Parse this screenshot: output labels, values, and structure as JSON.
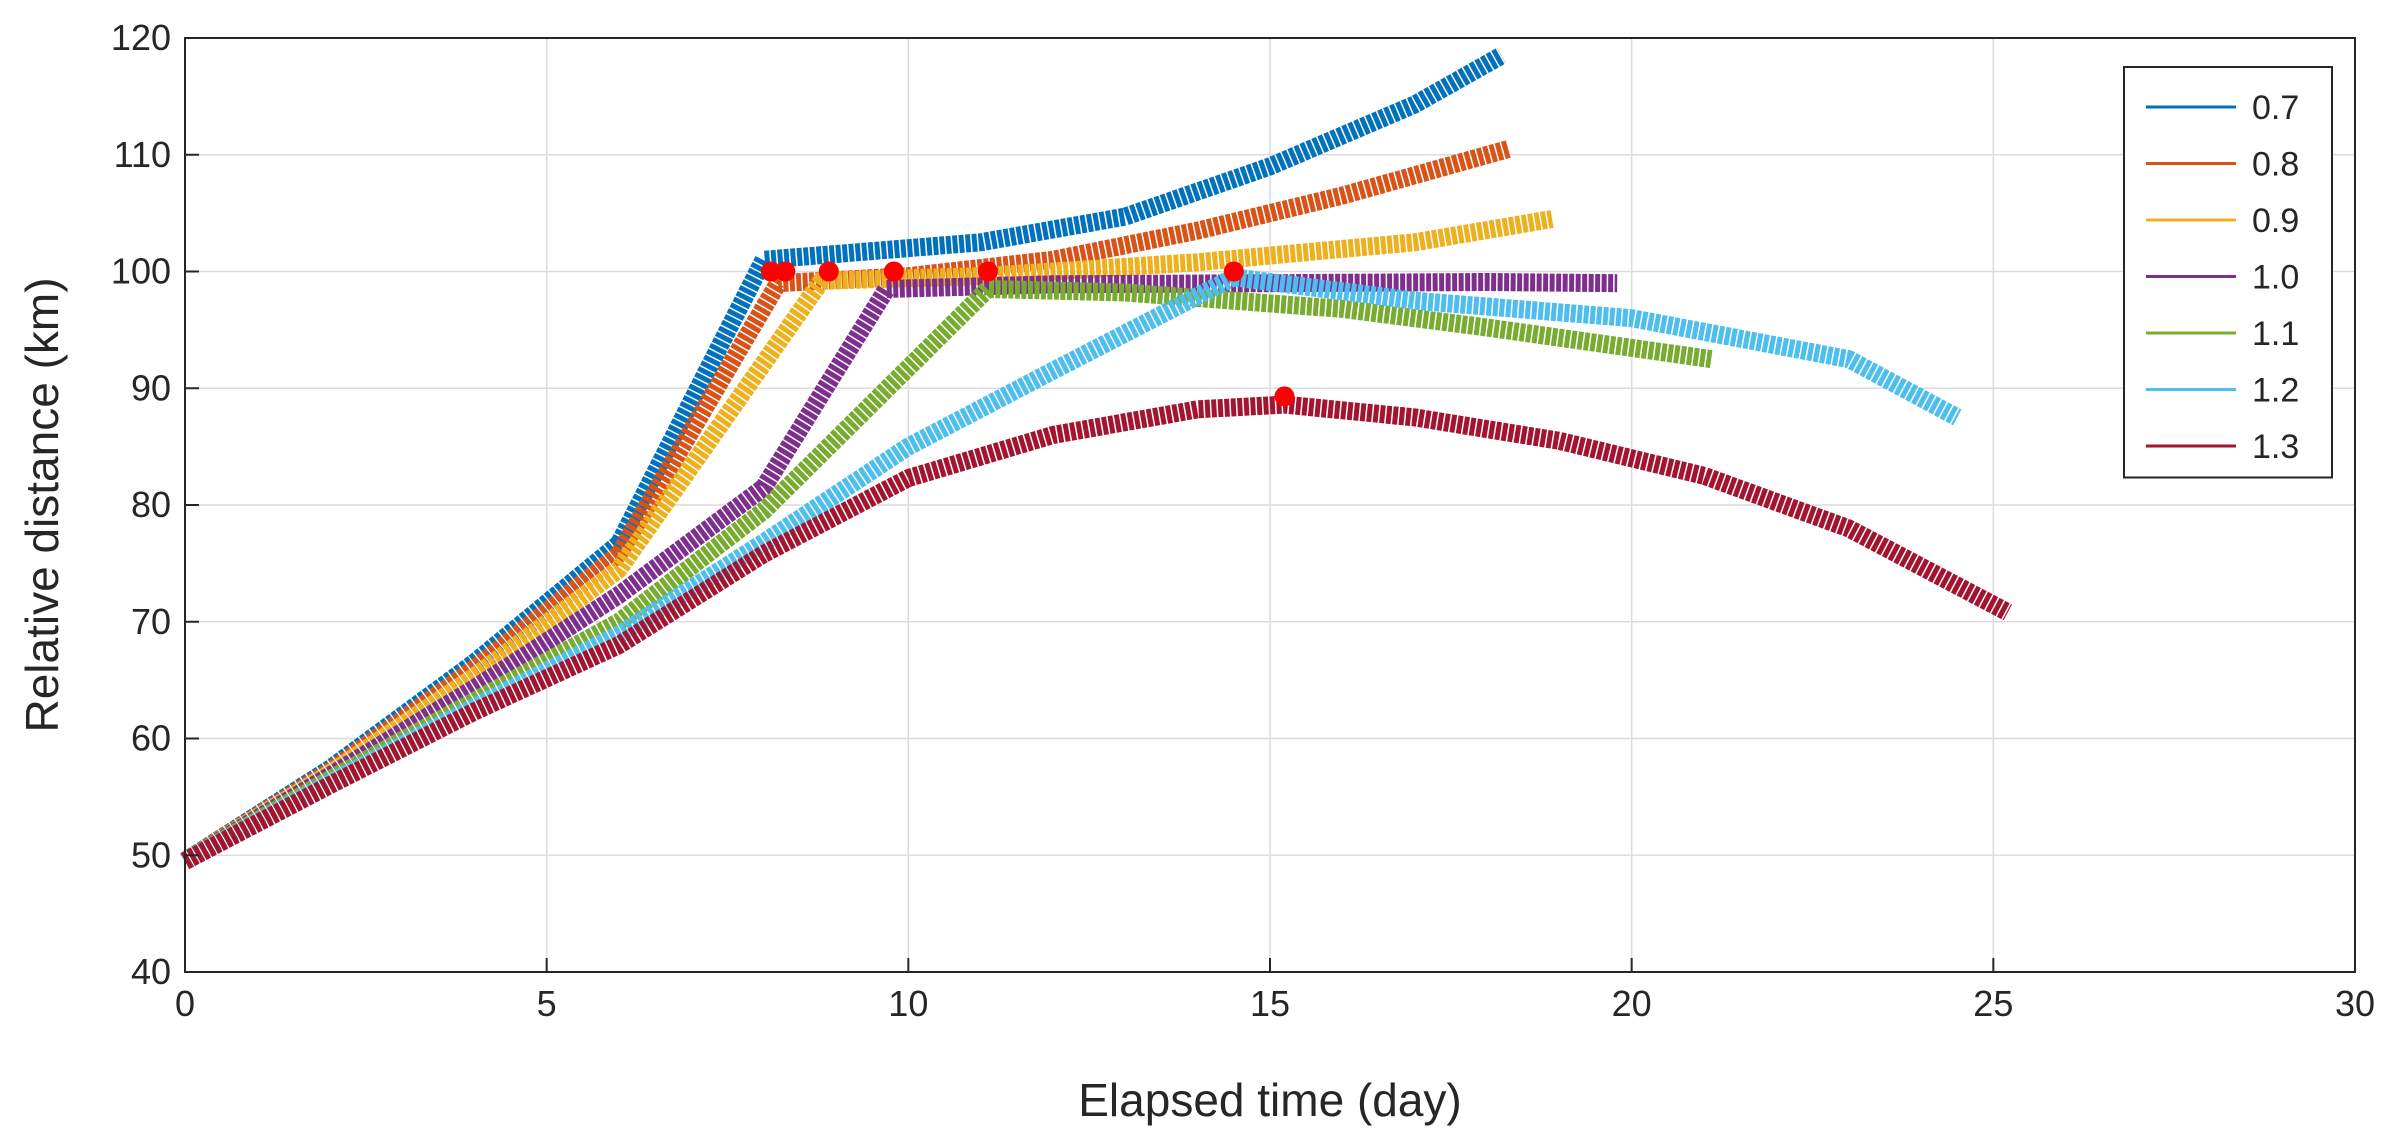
{
  "chart_data": {
    "type": "line",
    "title": "",
    "xlabel": "Elapsed time (day)",
    "ylabel": "Relative distance (km)",
    "xlim": [
      0,
      30
    ],
    "ylim": [
      40,
      120
    ],
    "xticks": [
      0,
      5,
      10,
      15,
      20,
      25,
      30
    ],
    "yticks": [
      40,
      50,
      60,
      70,
      80,
      90,
      100,
      110,
      120
    ],
    "xtick_labels": [
      "0",
      "5",
      "10",
      "15",
      "20",
      "25",
      "30"
    ],
    "ytick_labels": [
      "40",
      "50",
      "60",
      "70",
      "80",
      "90",
      "100",
      "110",
      "120"
    ],
    "grid": true,
    "legend_position": "top-right",
    "series": [
      {
        "name": "0.7",
        "color": "#0072BD",
        "points": [
          [
            0,
            49.5
          ],
          [
            2,
            57.4
          ],
          [
            4,
            66.5
          ],
          [
            6,
            76.7
          ],
          [
            8,
            101.0
          ],
          [
            9,
            101.5
          ],
          [
            11,
            102.5
          ],
          [
            13,
            104.7
          ],
          [
            15,
            109.0
          ],
          [
            17,
            114.3
          ],
          [
            18.2,
            118.5
          ]
        ],
        "marker": [
          8.1,
          100
        ]
      },
      {
        "name": "0.8",
        "color": "#D95319",
        "points": [
          [
            0,
            49.5
          ],
          [
            2,
            57.2
          ],
          [
            4,
            66.0
          ],
          [
            6,
            75.8
          ],
          [
            8.2,
            99.0
          ],
          [
            10,
            99.6
          ],
          [
            12,
            101.0
          ],
          [
            14,
            103.5
          ],
          [
            16,
            106.5
          ],
          [
            18.3,
            110.5
          ]
        ],
        "marker": [
          8.3,
          100
        ]
      },
      {
        "name": "0.9",
        "color": "#EDB120",
        "points": [
          [
            0,
            49.5
          ],
          [
            2,
            57.0
          ],
          [
            4,
            65.3
          ],
          [
            6,
            74.5
          ],
          [
            8.8,
            99.2
          ],
          [
            11,
            99.6
          ],
          [
            14,
            100.8
          ],
          [
            17,
            102.5
          ],
          [
            18.9,
            104.5
          ]
        ],
        "marker": [
          8.9,
          100
        ]
      },
      {
        "name": "1.0",
        "color": "#7E2F8E",
        "points": [
          [
            0,
            49.5
          ],
          [
            2,
            56.8
          ],
          [
            4,
            64.3
          ],
          [
            6,
            72.3
          ],
          [
            8,
            81.5
          ],
          [
            9.7,
            98.5
          ],
          [
            12,
            98.9
          ],
          [
            15,
            99.0
          ],
          [
            18,
            99.1
          ],
          [
            19.8,
            99.0
          ]
        ],
        "marker": [
          9.8,
          100
        ]
      },
      {
        "name": "1.1",
        "color": "#77AC30",
        "points": [
          [
            0,
            49.5
          ],
          [
            2,
            56.5
          ],
          [
            4,
            63.2
          ],
          [
            6,
            70.0
          ],
          [
            8,
            79.5
          ],
          [
            11.1,
            98.5
          ],
          [
            13,
            98.2
          ],
          [
            16,
            96.8
          ],
          [
            18,
            95.2
          ],
          [
            21.1,
            92.5
          ]
        ],
        "marker": [
          11.1,
          100
        ]
      },
      {
        "name": "1.2",
        "color": "#4DBEEE",
        "points": [
          [
            0,
            49.5
          ],
          [
            2,
            56.2
          ],
          [
            4,
            62.7
          ],
          [
            6,
            68.9
          ],
          [
            8,
            76.8
          ],
          [
            10,
            85.0
          ],
          [
            12,
            91.5
          ],
          [
            14.5,
            99.5
          ],
          [
            17,
            97.5
          ],
          [
            20,
            96.0
          ],
          [
            23,
            92.5
          ],
          [
            24.5,
            87.5
          ]
        ],
        "marker": [
          14.5,
          100
        ]
      },
      {
        "name": "1.3",
        "color": "#A2142F",
        "points": [
          [
            0,
            49.5
          ],
          [
            2,
            56.0
          ],
          [
            4,
            62.3
          ],
          [
            6,
            68.0
          ],
          [
            8,
            75.8
          ],
          [
            10,
            82.3
          ],
          [
            12,
            86.0
          ],
          [
            14,
            88.2
          ],
          [
            15.2,
            88.6
          ],
          [
            17,
            87.5
          ],
          [
            19,
            85.5
          ],
          [
            21,
            82.5
          ],
          [
            23,
            78.0
          ],
          [
            25.2,
            70.8
          ]
        ],
        "marker": [
          15.2,
          89.3
        ]
      }
    ]
  }
}
